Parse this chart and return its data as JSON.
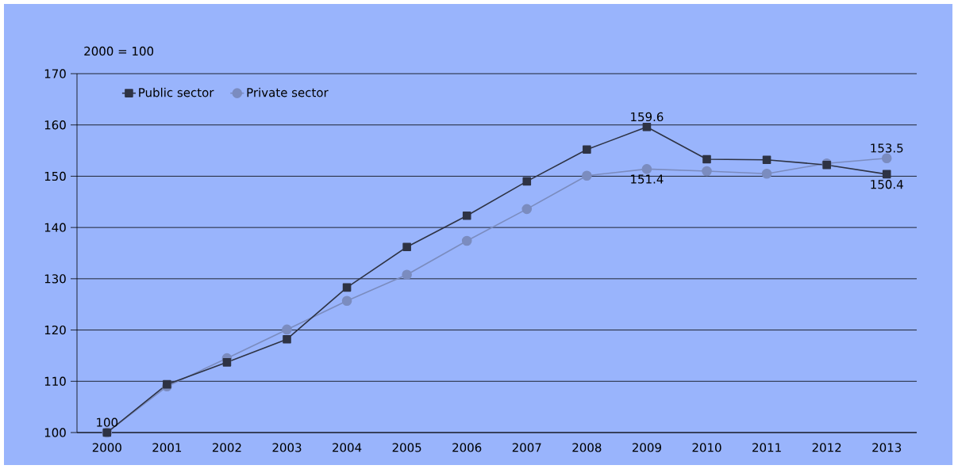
{
  "chart_data": {
    "type": "line",
    "ylabel": "2000 = 100",
    "categories": [
      "2000",
      "2001",
      "2002",
      "2003",
      "2004",
      "2005",
      "2006",
      "2007",
      "2008",
      "2009",
      "2010",
      "2011",
      "2012",
      "2013"
    ],
    "series": [
      {
        "name": "Public sector",
        "color": "#2e3344",
        "marker": "square",
        "values": [
          100,
          109.4,
          113.7,
          118.2,
          128.3,
          136.2,
          142.3,
          149.0,
          155.2,
          159.6,
          153.3,
          153.2,
          152.2,
          150.4
        ],
        "value_labels": [
          "100",
          null,
          null,
          null,
          null,
          null,
          null,
          null,
          null,
          "159.6",
          null,
          null,
          null,
          "150.4"
        ]
      },
      {
        "name": "Private sector",
        "color": "#7b8cbf",
        "marker": "circle",
        "values": [
          100,
          109.0,
          114.5,
          120.1,
          125.7,
          130.8,
          137.4,
          143.6,
          150.1,
          151.4,
          151.0,
          150.5,
          152.5,
          153.5
        ],
        "value_labels": [
          null,
          null,
          null,
          null,
          null,
          null,
          null,
          null,
          null,
          "151.4",
          null,
          null,
          null,
          "153.5"
        ]
      }
    ],
    "ylim": [
      100,
      170
    ],
    "yticks": [
      100,
      110,
      120,
      130,
      140,
      150,
      160,
      170
    ],
    "grid": "y",
    "legend": "top left",
    "line_style": "solid"
  }
}
